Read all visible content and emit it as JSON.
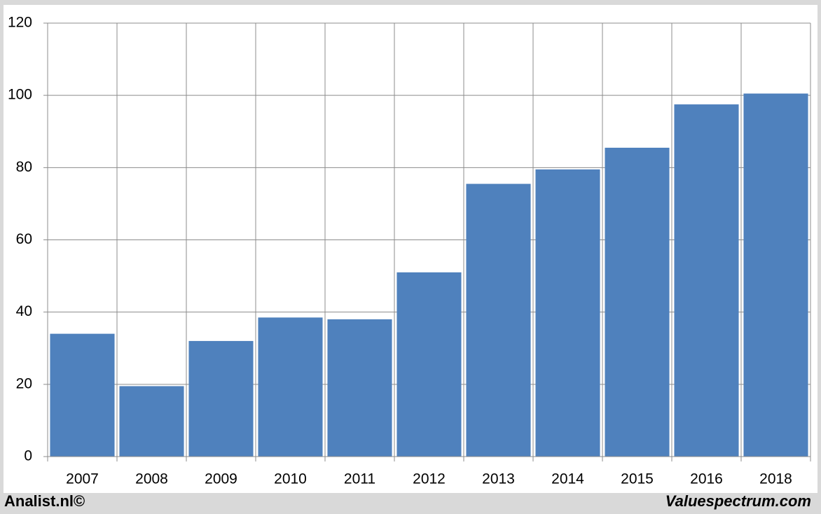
{
  "chart_data": {
    "type": "bar",
    "categories": [
      "2007",
      "2008",
      "2009",
      "2010",
      "2011",
      "2012",
      "2013",
      "2014",
      "2015",
      "2016",
      "2018"
    ],
    "values": [
      34,
      19.5,
      32,
      38.5,
      38,
      51,
      75.5,
      79.5,
      85.5,
      97.5,
      100.5
    ],
    "color": "#4f81bd",
    "ylim": [
      0,
      120
    ],
    "yticks": [
      0,
      20,
      40,
      60,
      80,
      100,
      120
    ],
    "grid": true,
    "footer_left": "Analist.nl©",
    "footer_right": "Valuespectrum.com"
  }
}
